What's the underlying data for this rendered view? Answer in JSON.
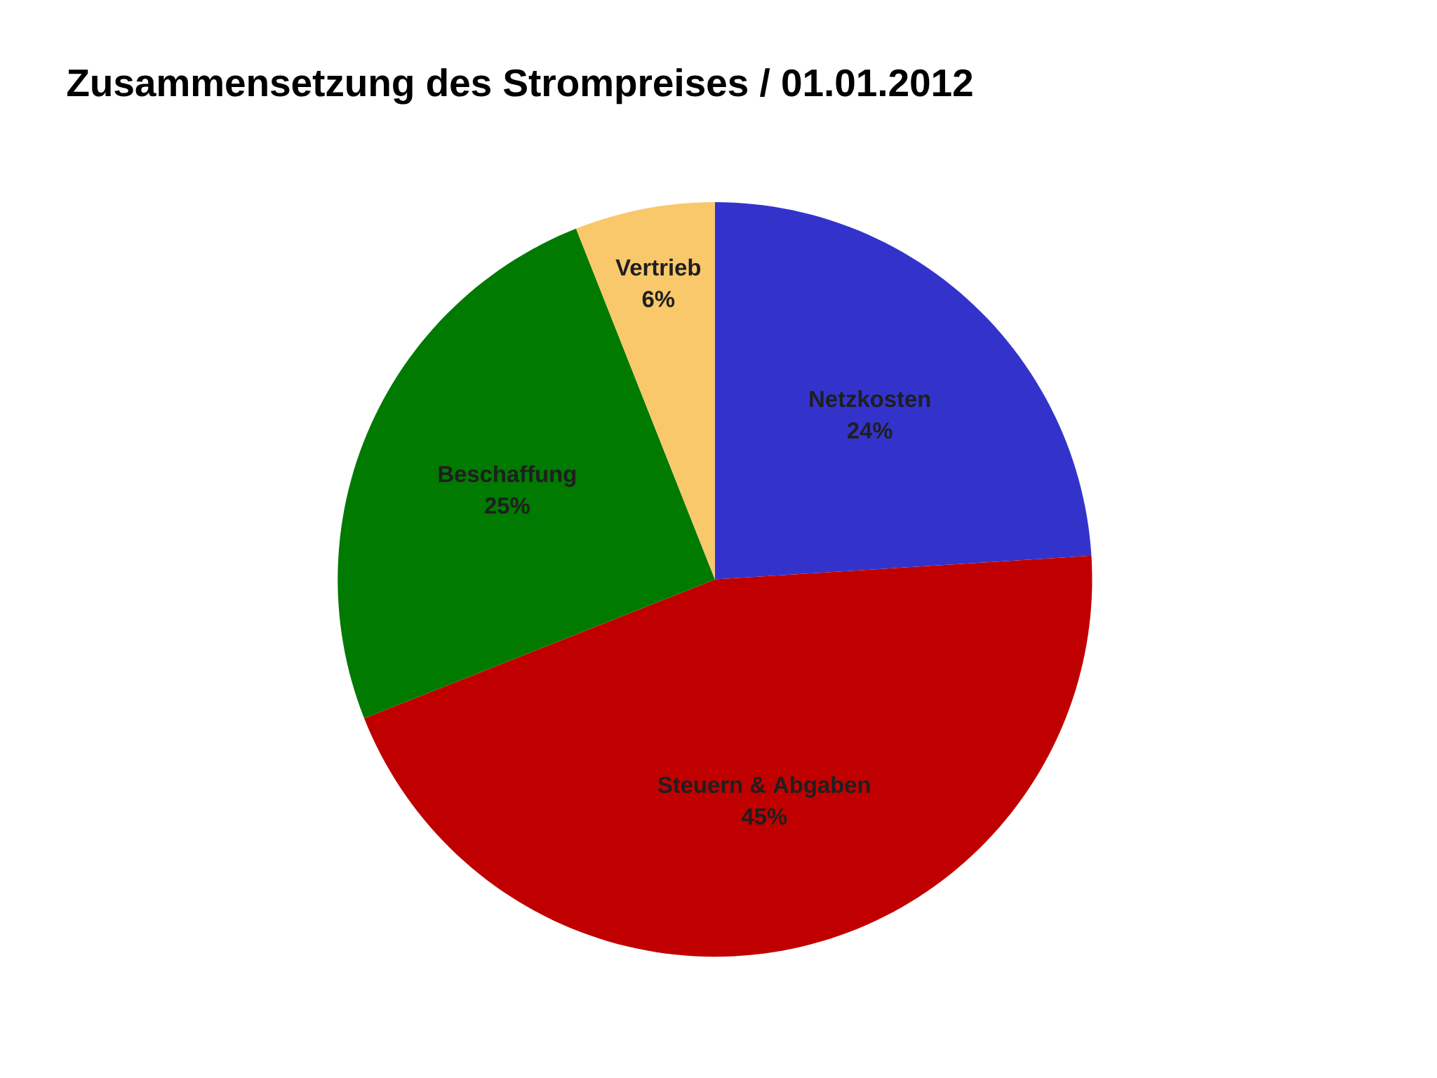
{
  "chart_data": {
    "type": "pie",
    "title": "Zusammensetzung des Strompreises / 01.01.2012",
    "categories": [
      "Netzkosten",
      "Steuern & Abgaben",
      "Beschaffung",
      "Vertrieb"
    ],
    "values": [
      24,
      45,
      25,
      6
    ],
    "value_labels": [
      "24%",
      "45%",
      "25%",
      "6%"
    ],
    "colors": [
      "#3333cc",
      "#c00000",
      "#007a00",
      "#f9c86b"
    ]
  }
}
